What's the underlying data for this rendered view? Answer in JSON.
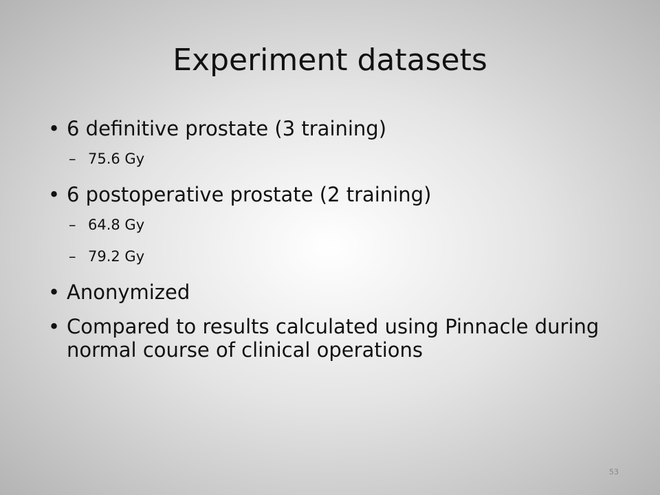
{
  "slide": {
    "title": "Experiment datasets",
    "bullets": [
      {
        "text": "6 definitive prostate (3 training)",
        "sub": [
          "75.6 Gy"
        ]
      },
      {
        "text": "6 postoperative prostate (2 training)",
        "sub": [
          "64.8 Gy",
          "79.2 Gy"
        ]
      },
      {
        "text": "Anonymized",
        "sub": []
      },
      {
        "text": "Compared to results calculated using Pinnacle during normal course of clinical operations",
        "sub": []
      }
    ],
    "page_number": "53"
  }
}
